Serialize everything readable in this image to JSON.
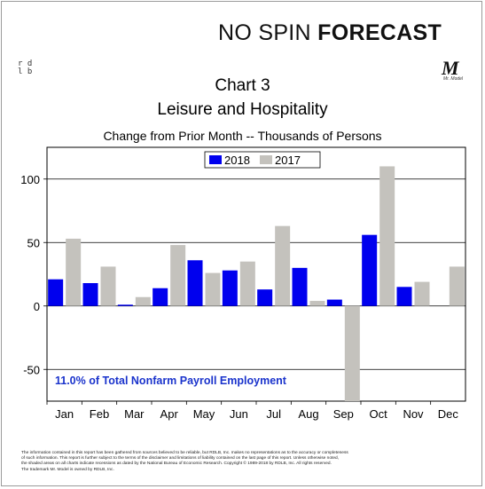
{
  "brand": {
    "part1": "NO SPIN",
    "part2": "FORECAST"
  },
  "logo_left": {
    "line1": "r d",
    "line2": "l b"
  },
  "logo_right": {
    "mark": "M",
    "caption": "Mr. Model"
  },
  "header": {
    "title_line1": "Chart 3",
    "title_line2": "Leisure and Hospitality",
    "subtitle": "Change from Prior Month -- Thousands of Persons"
  },
  "colors": {
    "series_2018": "#0000ee",
    "series_2017": "#c4c2bd",
    "annotation": "#1a33cc"
  },
  "chart_data": {
    "type": "bar",
    "categories": [
      "Jan",
      "Feb",
      "Mar",
      "Apr",
      "May",
      "Jun",
      "Jul",
      "Aug",
      "Sep",
      "Oct",
      "Nov",
      "Dec"
    ],
    "series": [
      {
        "name": "2018",
        "values": [
          21,
          18,
          1,
          14,
          36,
          28,
          13,
          30,
          5,
          56,
          15,
          null
        ]
      },
      {
        "name": "2017",
        "values": [
          53,
          31,
          7,
          48,
          26,
          35,
          63,
          4,
          -75,
          110,
          19,
          31
        ]
      }
    ],
    "ylim": [
      -75,
      125
    ],
    "yticks": [
      100,
      50,
      0,
      -50
    ],
    "grid": true,
    "legend": "top-center",
    "annotation": "11.0% of Total Nonfarm Payroll Employment"
  },
  "footer": {
    "line1": "The information contained in this report has been gathered from sources believed to be reliable, but RDLB, Inc. makes no representations as to the accuracy or completeness",
    "line2": "of such information. This report is further subject to the terms of the disclaimer and limitations of liability contained on the last page of this report. Unless otherwise noted,",
    "line3": "the shaded areas on all charts indicate recessions as dated by the National Bureau of Economic Research. Copyright © 1989-2018 by RDLB, Inc. All rights reserved.",
    "line4": "The trademark Mr. Model is owned by RDLB, Inc."
  }
}
